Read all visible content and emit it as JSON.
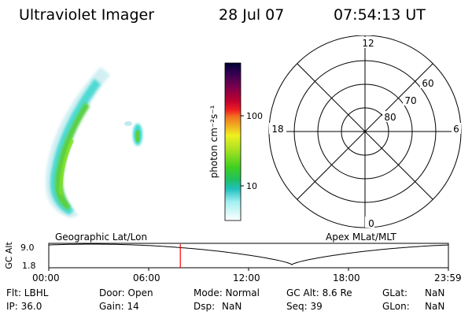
{
  "header": {
    "title": "Ultraviolet Imager",
    "date": "28 Jul 07",
    "time": "07:54:13 UT"
  },
  "colorbar": {
    "unit_label": "photon cm⁻²s⁻¹",
    "tick_100": "100",
    "tick_10": "10",
    "colors_top_to_bottom": [
      "#000030",
      "#200040",
      "#400060",
      "#700050",
      "#a00030",
      "#d00020",
      "#f02020",
      "#f06020",
      "#f0a020",
      "#f0e020",
      "#e0f020",
      "#a0e020",
      "#60d020",
      "#20c020",
      "#20c0a0",
      "#40e0e0",
      "#a0f0f0",
      "#e0ffff",
      "#ffffff"
    ]
  },
  "polar_plot": {
    "mlt_labels": {
      "top": "12",
      "bottom": "0",
      "left": "18",
      "right": "6"
    },
    "lat_labels": [
      "60",
      "70",
      "80"
    ]
  },
  "timeline": {
    "left_title": "Geographic Lat/Lon",
    "right_title": "Apex MLat/MLT",
    "y_label": "GC Alt",
    "y_max": "9.0",
    "y_min": "1.8",
    "x_ticks": [
      "00:00",
      "06:00",
      "12:00",
      "18:00",
      "23:59"
    ],
    "marker_time_hours": 7.9,
    "marker_color": "#ff0000"
  },
  "status": {
    "flt": "Flt: LBHL",
    "door": "Door: Open",
    "mode": "Mode: Normal",
    "gc_alt": "GC Alt: 8.6 Re",
    "glat_label": "GLat:",
    "glat_value": "NaN",
    "ip": "IP: 36.0",
    "gain": "Gain: 14",
    "dsp_label": "Dsp:",
    "dsp_value": "NaN",
    "seq": "Seq: 39",
    "glon_label": "GLon:",
    "glon_value": "NaN"
  }
}
